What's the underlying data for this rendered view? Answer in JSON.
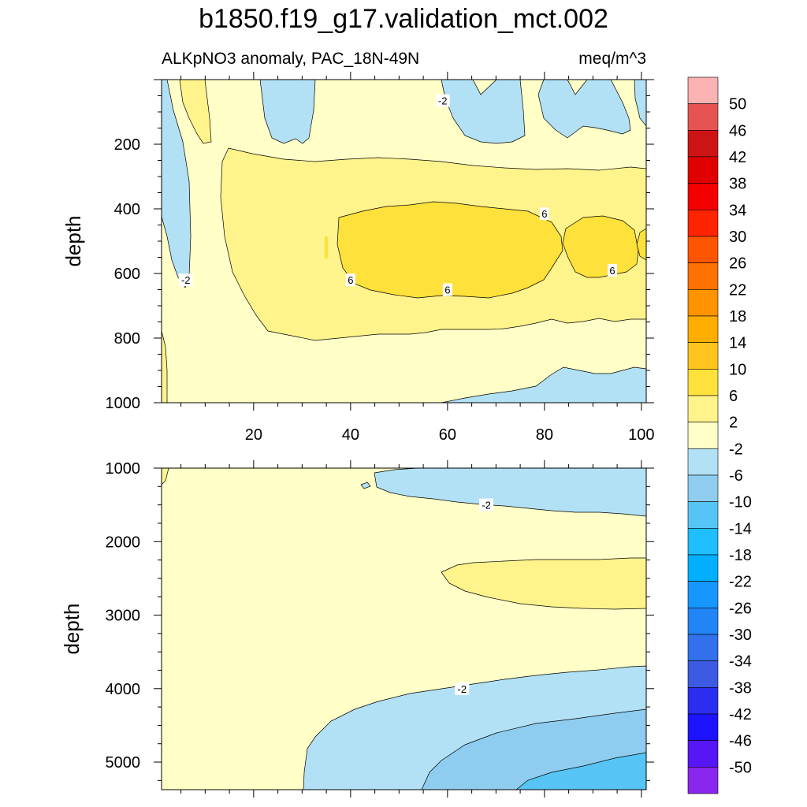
{
  "title": "b1850.f19_g17.validation_mct.002",
  "chart_data": [
    {
      "type": "contour",
      "subtitle_left": "ALKpNO3 anomaly, PAC_18N-49N",
      "subtitle_right": "meq/m^3",
      "ylabel": "depth",
      "xlim": [
        1,
        101
      ],
      "ylim": [
        0,
        1000
      ],
      "y_reversed": true,
      "x_ticks": [
        20,
        40,
        60,
        80,
        100
      ],
      "x_tick_labels": [
        "20",
        "40",
        "60",
        "80",
        "100"
      ],
      "y_ticks": [
        200,
        400,
        600,
        800,
        1000
      ],
      "y_tick_labels": [
        "200",
        "400",
        "600",
        "800",
        "1000"
      ],
      "contour_labels": [
        {
          "text": "-2",
          "x": 59,
          "y": 65
        },
        {
          "text": "-2",
          "x": 6,
          "y": 620
        },
        {
          "text": "6",
          "x": 80,
          "y": 415
        },
        {
          "text": "6",
          "x": 40,
          "y": 620
        },
        {
          "text": "6",
          "x": 60,
          "y": 650
        },
        {
          "text": "6",
          "x": 94,
          "y": 590
        }
      ]
    },
    {
      "type": "contour",
      "ylabel": "depth",
      "xlim": [
        1,
        101
      ],
      "ylim": [
        1000,
        5375
      ],
      "y_reversed": true,
      "y_ticks": [
        1000,
        2000,
        3000,
        4000,
        5000
      ],
      "y_tick_labels": [
        "1000",
        "2000",
        "3000",
        "4000",
        "5000"
      ],
      "contour_labels": [
        {
          "text": "-2",
          "x": 68,
          "y": 1500
        },
        {
          "text": "-2",
          "x": 63,
          "y": 4000
        }
      ]
    }
  ],
  "colorbar": {
    "labels": [
      "50",
      "46",
      "42",
      "38",
      "34",
      "30",
      "26",
      "22",
      "18",
      "14",
      "10",
      "6",
      "2",
      "-2",
      "-6",
      "-10",
      "-14",
      "-18",
      "-22",
      "-26",
      "-30",
      "-34",
      "-38",
      "-42",
      "-46",
      "-50"
    ],
    "colors": [
      "#fbb2b2",
      "#e55353",
      "#cd1414",
      "#e10000",
      "#f50000",
      "#ff2300",
      "#ff5500",
      "#ff7100",
      "#ff9300",
      "#ffae00",
      "#ffc51c",
      "#ffe13b",
      "#fff38b",
      "#ffffc7",
      "#b2e1f5",
      "#8ecdef",
      "#56c5f5",
      "#1ebeff",
      "#00b0ff",
      "#1697ff",
      "#2285f5",
      "#3270ec",
      "#3c5ae2",
      "#2b2ef0",
      "#1e13ff",
      "#5616f5",
      "#8a25ed"
    ]
  },
  "palette": {
    "neg10": "#8ecdef",
    "neg6": "#b2e1f5",
    "neg14": "#56c5f5",
    "zero": "#ffffc7",
    "pos2": "#fff38b",
    "pos6": "#ffe13b",
    "pos10": "#ffc51c"
  }
}
